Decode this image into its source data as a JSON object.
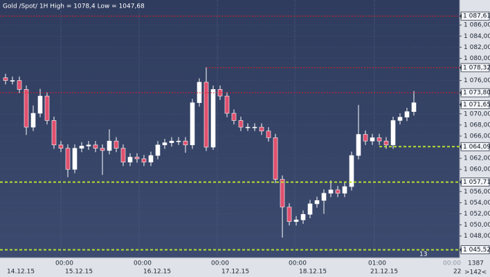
{
  "chart_data": {
    "type": "candlestick",
    "title": "Gold /Spot/ 1H High = 1078,4 Low = 1047,68",
    "open": [
      1076.5,
      1076.0,
      1076.0,
      1074.4,
      1067.6,
      1070.1,
      1073.2,
      1068.8,
      1064.4,
      1063.8,
      1060.0,
      1063.8,
      1064.2,
      1064.4,
      1063.8,
      1063.4,
      1065.1,
      1063.8,
      1061.3,
      1062.2,
      1061.9,
      1061.3,
      1062.5,
      1064.4,
      1064.8,
      1065.1,
      1065.1,
      1064.4,
      1072.0,
      1075.7,
      1064.0,
      1074.4,
      1073.2,
      1070.1,
      1068.8,
      1067.6,
      1067.6,
      1067.6,
      1066.9,
      1065.7,
      1058.2,
      1053.2,
      1050.6,
      1050.9,
      1051.9,
      1053.8,
      1054.4,
      1055.7,
      1056.3,
      1055.7,
      1056.9,
      1062.5,
      1066.3,
      1065.1,
      1065.7,
      1065.1,
      1064.4,
      1068.8,
      1069.4,
      1070.4
    ],
    "high": [
      1077.2,
      1076.7,
      1076.7,
      1075.1,
      1071.5,
      1074.5,
      1073.9,
      1069.5,
      1065.1,
      1064.5,
      1064.5,
      1064.9,
      1065.1,
      1065.1,
      1064.5,
      1067.2,
      1065.8,
      1064.5,
      1062.9,
      1062.9,
      1062.6,
      1063.2,
      1065.1,
      1065.5,
      1065.8,
      1065.8,
      1065.8,
      1072.7,
      1076.4,
      1078.4,
      1075.1,
      1075.1,
      1073.9,
      1070.8,
      1069.5,
      1068.3,
      1068.3,
      1068.3,
      1067.6,
      1066.4,
      1058.9,
      1053.9,
      1051.6,
      1052.6,
      1054.5,
      1055.1,
      1056.4,
      1058.0,
      1057.0,
      1057.6,
      1063.2,
      1071.6,
      1067.0,
      1066.4,
      1066.4,
      1065.8,
      1069.5,
      1070.1,
      1071.1,
      1074.1
    ],
    "low": [
      1075.3,
      1075.3,
      1073.7,
      1066.2,
      1066.9,
      1069.4,
      1068.1,
      1063.7,
      1063.1,
      1058.6,
      1059.3,
      1063.1,
      1063.5,
      1063.1,
      1059.0,
      1062.7,
      1063.1,
      1060.6,
      1060.6,
      1061.2,
      1060.6,
      1060.6,
      1061.8,
      1063.7,
      1064.1,
      1064.4,
      1063.0,
      1063.7,
      1071.3,
      1063.3,
      1063.5,
      1072.5,
      1069.4,
      1068.1,
      1066.9,
      1066.9,
      1066.9,
      1066.2,
      1065.0,
      1057.5,
      1047.7,
      1049.9,
      1049.9,
      1050.2,
      1051.2,
      1053.1,
      1052.0,
      1055.0,
      1055.0,
      1055.0,
      1056.2,
      1061.8,
      1064.4,
      1064.4,
      1064.4,
      1063.7,
      1063.7,
      1068.1,
      1068.7,
      1069.7
    ],
    "close": [
      1076.0,
      1076.0,
      1074.4,
      1067.6,
      1070.1,
      1073.2,
      1068.8,
      1064.4,
      1063.8,
      1060.0,
      1063.8,
      1064.2,
      1064.4,
      1063.8,
      1063.4,
      1065.1,
      1063.8,
      1061.3,
      1062.2,
      1061.9,
      1061.3,
      1062.5,
      1064.4,
      1064.8,
      1065.1,
      1065.1,
      1064.4,
      1072.0,
      1075.7,
      1064.0,
      1074.4,
      1073.2,
      1070.1,
      1068.8,
      1067.6,
      1067.6,
      1067.6,
      1066.9,
      1065.7,
      1058.2,
      1053.2,
      1050.6,
      1050.9,
      1051.9,
      1053.8,
      1054.4,
      1055.7,
      1056.3,
      1055.7,
      1056.9,
      1062.5,
      1066.3,
      1065.1,
      1065.7,
      1065.1,
      1064.4,
      1068.8,
      1069.4,
      1070.4,
      1072.0
    ],
    "up_color": "#ffffff",
    "down_color": "#e0506e",
    "ylim": [
      1044.1,
      1090.5
    ],
    "yticks": [
      {
        "value": 1048,
        "label": "1 048,00"
      },
      {
        "value": 1050,
        "label": "1 050,00"
      },
      {
        "value": 1052,
        "label": "1 052,00"
      },
      {
        "value": 1054,
        "label": "1 054,00"
      },
      {
        "value": 1056,
        "label": "1 056,00"
      },
      {
        "value": 1060,
        "label": "1 060,00"
      },
      {
        "value": 1062,
        "label": "1 062,00"
      },
      {
        "value": 1066,
        "label": "1 066,00"
      },
      {
        "value": 1068,
        "label": "1 068,00"
      },
      {
        "value": 1070,
        "label": "1 070,00"
      },
      {
        "value": 1076,
        "label": "1 076,00"
      },
      {
        "value": 1080,
        "label": "1 080,00"
      },
      {
        "value": 1082,
        "label": "1 082,00"
      },
      {
        "value": 1084,
        "label": "1 084,00"
      },
      {
        "value": 1086,
        "label": "1 086,00"
      }
    ],
    "levels": [
      {
        "value": 1087.61,
        "label": "1 087,61",
        "color": "#e0202a",
        "style": "dotted"
      },
      {
        "value": 1078.32,
        "label": "1 078,32",
        "color": "#e0202a",
        "style": "dotted"
      },
      {
        "value": 1073.8,
        "label": "1 073,80",
        "color": "#e0202a",
        "style": "dotted"
      },
      {
        "value": 1071.65,
        "label": "1 071,65",
        "color": "#ffffff",
        "style": "none"
      },
      {
        "value": 1064.09,
        "label": "1 064,09",
        "color": "#b8e030",
        "style": "dashed"
      },
      {
        "value": 1057.71,
        "label": "1 057,71",
        "color": "#b8e030",
        "style": "dashed"
      },
      {
        "value": 1045.52,
        "label": "1 045,52",
        "color": "#b8e030",
        "style": "dashed"
      }
    ],
    "time_labels": [
      "00:00",
      "00:00",
      "00:00",
      "00:00",
      "01:00",
      "00:00"
    ],
    "date_labels": [
      "14.12.15",
      "15.12.15",
      "16.12.15",
      "17.12.15",
      "18.12.15",
      "21.12.15",
      "22"
    ],
    "corner_labels": [
      "13",
      "1387",
      ">142<"
    ],
    "grid": true
  }
}
